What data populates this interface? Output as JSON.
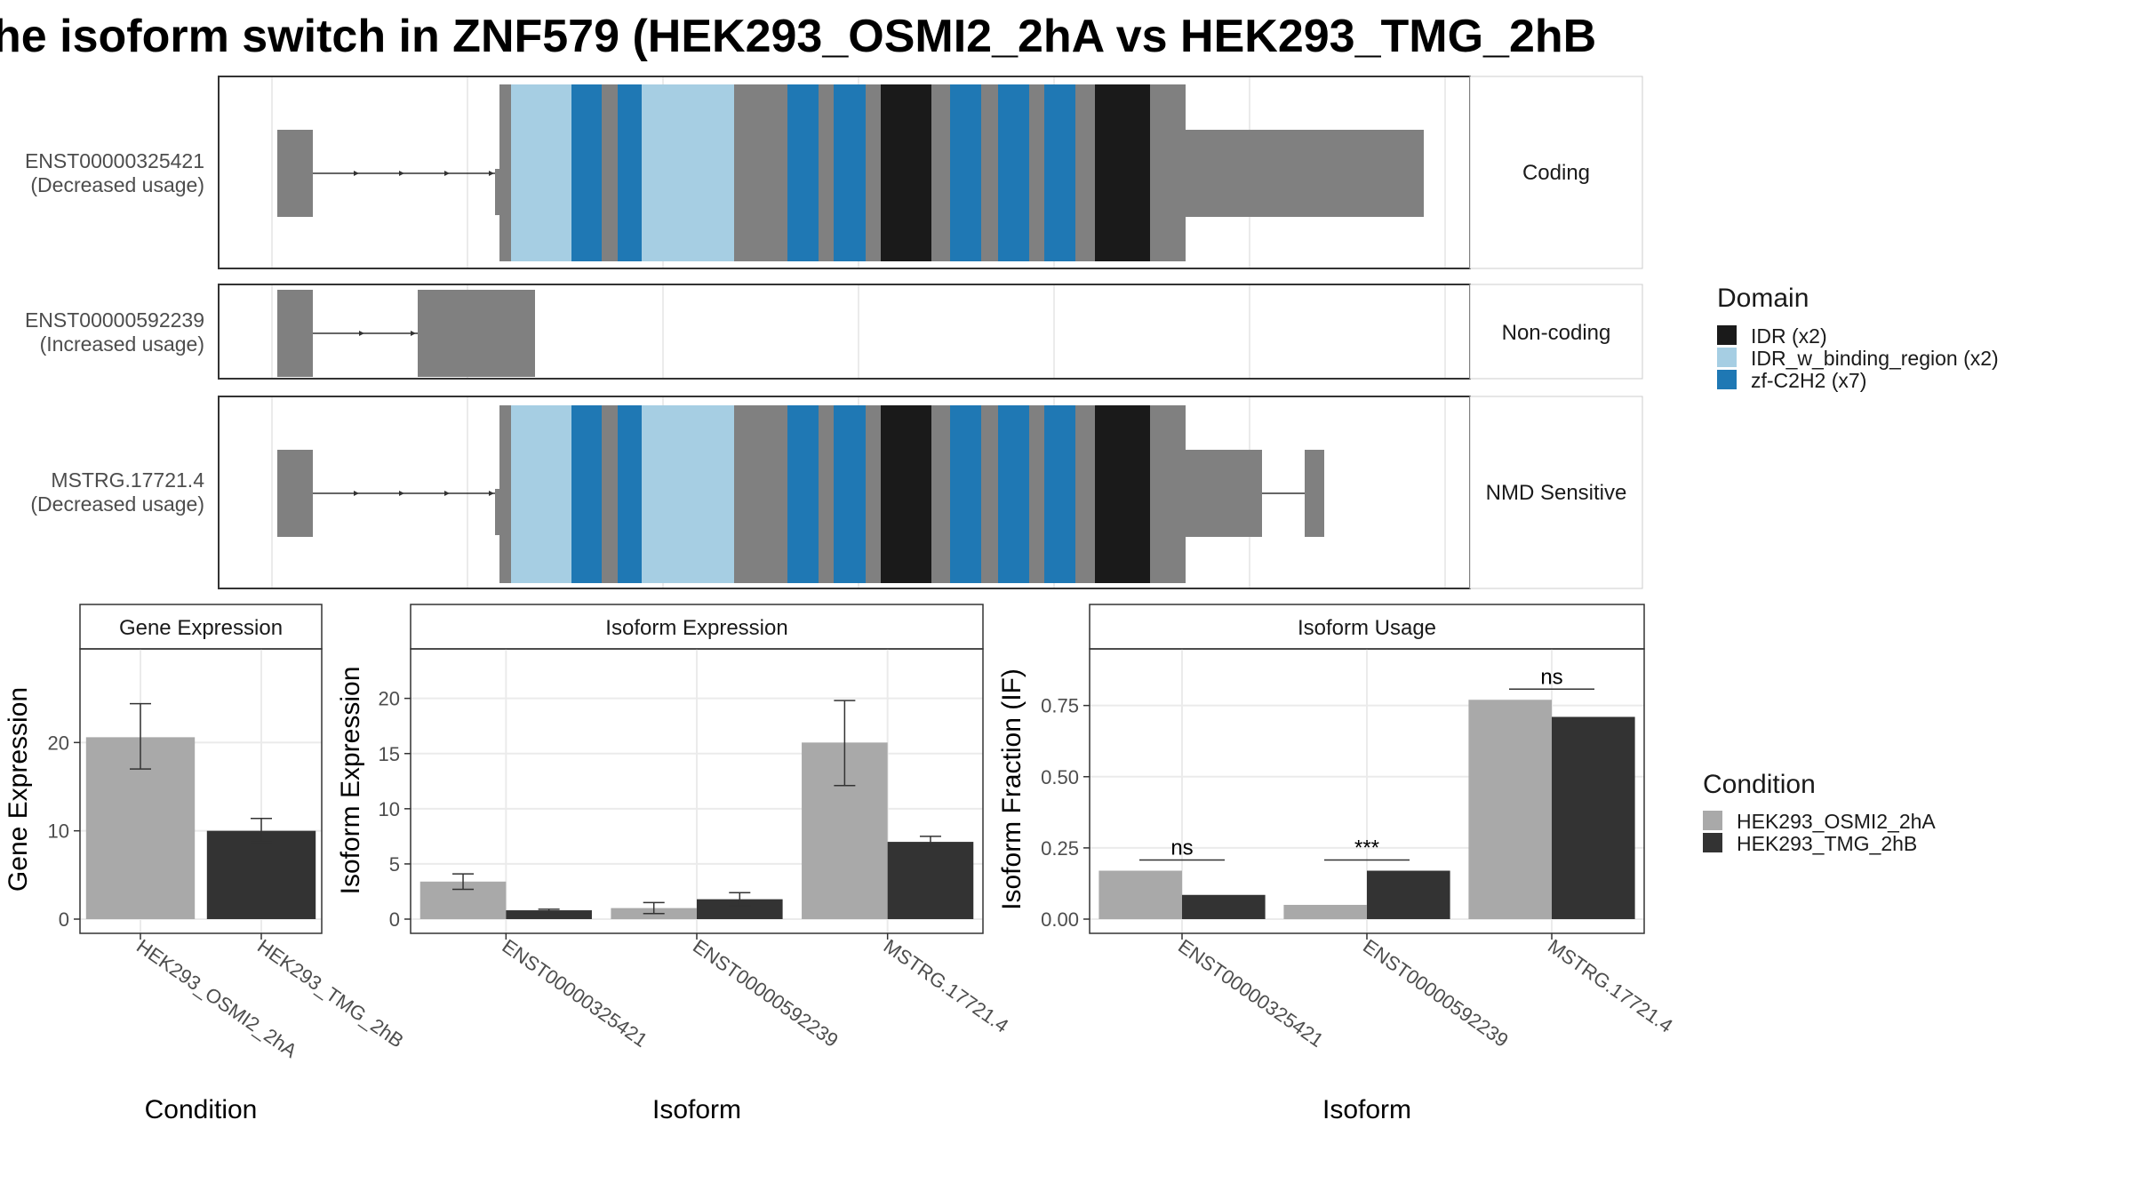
{
  "title": "he isoform switch in ZNF579 (HEK293_OSMI2_2hA vs HEK293_TMG_2hB",
  "colors": {
    "exon": "#808080",
    "IDR": "#1a1a1a",
    "IDR_w_binding_region": "#a6cee3",
    "zf_C2H2": "#1f78b4",
    "cond_A": "#a9a9a9",
    "cond_B": "#333333",
    "panel_border": "#333333",
    "grid": "#ebebeb"
  },
  "isoform_panels": [
    {
      "id": "ENST00000325421",
      "usage": "(Decreased usage)",
      "category": "Coding"
    },
    {
      "id": "ENST00000592239",
      "usage": "(Increased usage)",
      "category": "Non-coding"
    },
    {
      "id": "MSTRG.17721.4",
      "usage": "(Decreased usage)",
      "category": "NMD Sensitive"
    }
  ],
  "legend_domain": {
    "title": "Domain",
    "items": [
      {
        "label": "IDR (x2)",
        "color": "#1a1a1a"
      },
      {
        "label": "IDR_w_binding_region (x2)",
        "color": "#a6cee3"
      },
      {
        "label": "zf-C2H2 (x7)",
        "color": "#1f78b4"
      }
    ]
  },
  "legend_condition": {
    "title": "Condition",
    "items": [
      {
        "label": "HEK293_OSMI2_2hA",
        "color": "#a9a9a9"
      },
      {
        "label": "HEK293_TMG_2hB",
        "color": "#333333"
      }
    ]
  },
  "chart_data": [
    {
      "type": "bar",
      "title": "Gene Expression",
      "xlabel": "Condition",
      "ylabel": "Gene Expression",
      "ylim": [
        0,
        30
      ],
      "yticks": [
        0,
        10,
        20
      ],
      "categories": [
        "HEK293_OSMI2_2hA",
        "HEK293_TMG_2hB"
      ],
      "values": [
        20.6,
        10.0
      ],
      "error_low": [
        17.0,
        8.7
      ],
      "error_high": [
        24.4,
        11.4
      ]
    },
    {
      "type": "bar",
      "title": "Isoform Expression",
      "xlabel": "Isoform",
      "ylabel": "Isoform Expression",
      "ylim": [
        0,
        24
      ],
      "yticks": [
        0,
        5,
        10,
        15,
        20
      ],
      "categories": [
        "ENST00000325421",
        "ENST00000592239",
        "MSTRG.17721.4"
      ],
      "series": [
        {
          "name": "HEK293_OSMI2_2hA",
          "values": [
            3.4,
            1.0,
            16.0
          ],
          "error_low": [
            2.7,
            0.5,
            12.1
          ],
          "error_high": [
            4.1,
            1.5,
            19.8
          ]
        },
        {
          "name": "HEK293_TMG_2hB",
          "values": [
            0.8,
            1.8,
            7.0
          ],
          "error_low": [
            0.7,
            1.2,
            6.6
          ],
          "error_high": [
            0.9,
            2.4,
            7.5
          ]
        }
      ]
    },
    {
      "type": "bar",
      "title": "Isoform Usage",
      "xlabel": "Isoform",
      "ylabel": "Isoform Fraction (IF)",
      "ylim": [
        0,
        0.93
      ],
      "yticks": [
        "0.00",
        "0.25",
        "0.50",
        "0.75"
      ],
      "categories": [
        "ENST00000325421",
        "ENST00000592239",
        "MSTRG.17721.4"
      ],
      "series": [
        {
          "name": "HEK293_OSMI2_2hA",
          "values": [
            0.17,
            0.05,
            0.77
          ]
        },
        {
          "name": "HEK293_TMG_2hB",
          "values": [
            0.085,
            0.17,
            0.71
          ]
        }
      ],
      "significance": [
        "ns",
        "***",
        "ns"
      ]
    }
  ]
}
